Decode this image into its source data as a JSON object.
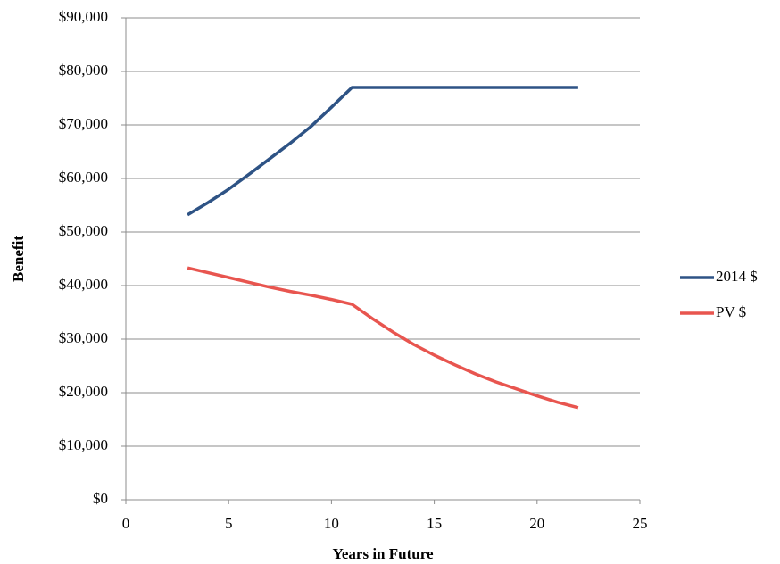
{
  "chart_data": {
    "type": "line",
    "x_label": "Years in Future",
    "y_label": "Benefit",
    "x": [
      3,
      4,
      5,
      6,
      7,
      8,
      9,
      10,
      11,
      12,
      13,
      14,
      15,
      16,
      17,
      18,
      19,
      20,
      21,
      22
    ],
    "series": [
      {
        "name": "2014 $",
        "color": "#2e5385",
        "values": [
          53200,
          55500,
          58000,
          60800,
          63700,
          66600,
          69700,
          73300,
          77000,
          77000,
          77000,
          77000,
          77000,
          77000,
          77000,
          77000,
          77000,
          77000,
          77000,
          77000
        ]
      },
      {
        "name": "PV $",
        "color": "#e8554f",
        "values": [
          43300,
          42400,
          41500,
          40600,
          39700,
          38900,
          38200,
          37400,
          36500,
          33800,
          31300,
          29000,
          27000,
          25200,
          23500,
          22000,
          20700,
          19400,
          18200,
          17200
        ]
      }
    ],
    "xlim": [
      0,
      25
    ],
    "xticks": [
      0,
      5,
      10,
      15,
      20,
      25
    ],
    "ylim": [
      0,
      90000
    ],
    "yticks": [
      {
        "value": 0,
        "label": "$0"
      },
      {
        "value": 10000,
        "label": "$10,000"
      },
      {
        "value": 20000,
        "label": "$20,000"
      },
      {
        "value": 30000,
        "label": "$30,000"
      },
      {
        "value": 40000,
        "label": "$40,000"
      },
      {
        "value": 50000,
        "label": "$50,000"
      },
      {
        "value": 60000,
        "label": "$60,000"
      },
      {
        "value": 70000,
        "label": "$70,000"
      },
      {
        "value": 80000,
        "label": "$80,000"
      },
      {
        "value": 90000,
        "label": "$90,000"
      }
    ],
    "grid": true,
    "legend": "right"
  }
}
